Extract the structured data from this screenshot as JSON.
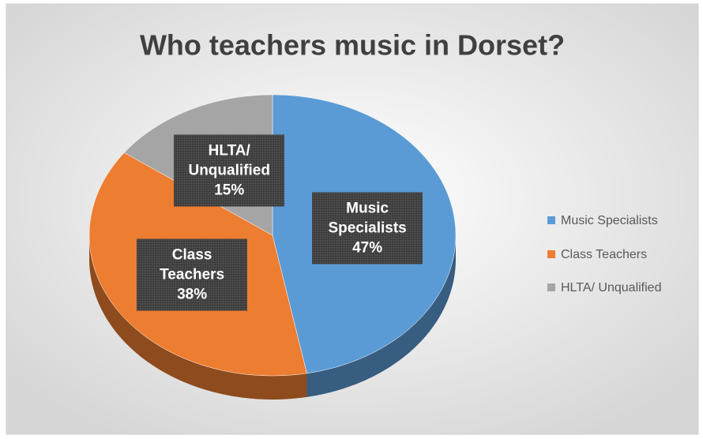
{
  "chart_data": {
    "type": "pie",
    "title": "Who teachers music in Dorset?",
    "categories": [
      "Music Specialists",
      "Class Teachers",
      "HLTA/ Unqualified"
    ],
    "values": [
      47,
      38,
      15
    ],
    "value_labels": [
      "47%",
      "38%",
      "15%"
    ],
    "colors": [
      "#5b9bd5",
      "#ed7d31",
      "#a5a5a5"
    ],
    "legend": "right"
  }
}
